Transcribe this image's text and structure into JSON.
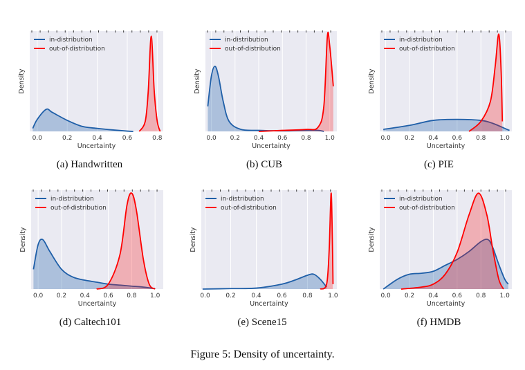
{
  "figure_caption": "Figure 5: Density of uncertainty.",
  "colors": {
    "in_distribution": "#1f5fa8",
    "out_of_distribution": "#ff0000",
    "background": "#eaeaf2"
  },
  "chart_data": [
    {
      "type": "area",
      "caption": "(a) Handwritten",
      "xlabel": "Uncertainty",
      "ylabel": "Density",
      "xlim": [
        -0.05,
        0.84
      ],
      "ylim": [
        0,
        1
      ],
      "xticks": [
        "0.0",
        "0.2",
        "0.4",
        "0.6",
        "0.8"
      ],
      "grid": true,
      "legend": "top-left",
      "series": [
        {
          "name": "in-distribution",
          "x": [
            -0.03,
            0.0,
            0.06,
            0.1,
            0.2,
            0.3,
            0.4,
            0.5,
            0.6,
            0.64
          ],
          "y": [
            0.03,
            0.12,
            0.22,
            0.19,
            0.11,
            0.05,
            0.03,
            0.015,
            0.003,
            0
          ]
        },
        {
          "name": "out-of-distribution",
          "x": [
            0.68,
            0.72,
            0.74,
            0.76,
            0.78,
            0.8,
            0.82
          ],
          "y": [
            0,
            0.1,
            0.4,
            0.95,
            0.4,
            0.1,
            0
          ]
        }
      ]
    },
    {
      "type": "area",
      "caption": "(b) CUB",
      "xlabel": "Uncertainty",
      "ylabel": "Density",
      "xlim": [
        -0.05,
        1.06
      ],
      "ylim": [
        0,
        1
      ],
      "xticks": [
        "0.0",
        "0.2",
        "0.4",
        "0.6",
        "0.8",
        "1.0"
      ],
      "grid": true,
      "legend": "top-left",
      "series": [
        {
          "name": "in-distribution",
          "x": [
            -0.03,
            0.0,
            0.03,
            0.06,
            0.1,
            0.15,
            0.25,
            0.4,
            0.6,
            0.8,
            0.9,
            0.95
          ],
          "y": [
            0.25,
            0.55,
            0.65,
            0.55,
            0.3,
            0.1,
            0.02,
            0.01,
            0.005,
            0.01,
            0.01,
            0
          ]
        },
        {
          "name": "out-of-distribution",
          "x": [
            0.4,
            0.6,
            0.8,
            0.9,
            0.95,
            0.98,
            1.0,
            1.03
          ],
          "y": [
            0,
            0.01,
            0.02,
            0.04,
            0.25,
            0.95,
            0.85,
            0.45
          ]
        }
      ]
    },
    {
      "type": "area",
      "caption": "(c) PIE",
      "xlabel": "Uncertainty",
      "ylabel": "Density",
      "xlim": [
        -0.05,
        1.06
      ],
      "ylim": [
        0,
        1
      ],
      "xticks": [
        "0.0",
        "0.2",
        "0.4",
        "0.6",
        "0.8",
        "1.0"
      ],
      "grid": true,
      "legend": "top-left",
      "series": [
        {
          "name": "in-distribution",
          "x": [
            -0.02,
            0.2,
            0.4,
            0.6,
            0.8,
            0.9,
            1.0,
            1.04
          ],
          "y": [
            0.02,
            0.06,
            0.11,
            0.12,
            0.11,
            0.08,
            0.03,
            0.01
          ]
        },
        {
          "name": "out-of-distribution",
          "x": [
            0.7,
            0.8,
            0.88,
            0.92,
            0.95,
            0.97,
            0.98
          ],
          "y": [
            0,
            0.1,
            0.3,
            0.65,
            0.97,
            0.6,
            0.1
          ]
        }
      ]
    },
    {
      "type": "area",
      "caption": "(d) Caltech101",
      "xlabel": "Uncertainty",
      "ylabel": "Density",
      "xlim": [
        -0.06,
        1.07
      ],
      "ylim": [
        0,
        1
      ],
      "xticks": [
        "0.0",
        "0.2",
        "0.4",
        "0.6",
        "0.8",
        "1.0"
      ],
      "grid": true,
      "legend": "top-left",
      "series": [
        {
          "name": "in-distribution",
          "x": [
            -0.04,
            0.0,
            0.04,
            0.1,
            0.2,
            0.3,
            0.4,
            0.5,
            0.6,
            0.7,
            0.8,
            0.9,
            1.0
          ],
          "y": [
            0.2,
            0.45,
            0.5,
            0.38,
            0.2,
            0.12,
            0.09,
            0.07,
            0.05,
            0.04,
            0.03,
            0.02,
            0.005
          ]
        },
        {
          "name": "out-of-distribution",
          "x": [
            0.5,
            0.6,
            0.7,
            0.76,
            0.8,
            0.84,
            0.9,
            0.95,
            1.0
          ],
          "y": [
            0,
            0.05,
            0.35,
            0.85,
            0.97,
            0.8,
            0.3,
            0.05,
            0
          ]
        }
      ]
    },
    {
      "type": "area",
      "caption": "(e) Scene15",
      "xlabel": "Uncertainty",
      "ylabel": "Density",
      "xlim": [
        -0.03,
        1.03
      ],
      "ylim": [
        0,
        1
      ],
      "xticks": [
        "0.0",
        "0.2",
        "0.4",
        "0.6",
        "0.8",
        "1.0"
      ],
      "grid": true,
      "legend": "top-left",
      "series": [
        {
          "name": "in-distribution",
          "x": [
            -0.02,
            0.2,
            0.4,
            0.6,
            0.7,
            0.8,
            0.85,
            0.9,
            0.95
          ],
          "y": [
            0,
            0.005,
            0.01,
            0.05,
            0.09,
            0.14,
            0.15,
            0.1,
            0.02
          ]
        },
        {
          "name": "out-of-distribution",
          "x": [
            0.9,
            0.95,
            0.97,
            0.985,
            0.995,
            1.0
          ],
          "y": [
            0,
            0.05,
            0.4,
            0.97,
            0.5,
            0.05
          ]
        }
      ]
    },
    {
      "type": "area",
      "caption": "(f) HMDB",
      "xlabel": "Uncertainty",
      "ylabel": "Density",
      "xlim": [
        -0.05,
        1.06
      ],
      "ylim": [
        0,
        1
      ],
      "xticks": [
        "0.0",
        "0.2",
        "0.4",
        "0.6",
        "0.8",
        "1.0"
      ],
      "grid": true,
      "legend": "top-left",
      "series": [
        {
          "name": "in-distribution",
          "x": [
            -0.02,
            0.1,
            0.2,
            0.3,
            0.4,
            0.5,
            0.6,
            0.7,
            0.8,
            0.86,
            0.9,
            0.95,
            1.0,
            1.03
          ],
          "y": [
            0,
            0.1,
            0.15,
            0.16,
            0.18,
            0.24,
            0.3,
            0.38,
            0.48,
            0.5,
            0.42,
            0.25,
            0.1,
            0.05
          ]
        },
        {
          "name": "out-of-distribution",
          "x": [
            0.13,
            0.3,
            0.4,
            0.5,
            0.6,
            0.7,
            0.78,
            0.85,
            0.9,
            0.95,
            0.99
          ],
          "y": [
            0,
            0.02,
            0.05,
            0.15,
            0.37,
            0.75,
            0.97,
            0.75,
            0.4,
            0.1,
            0
          ]
        }
      ]
    }
  ]
}
